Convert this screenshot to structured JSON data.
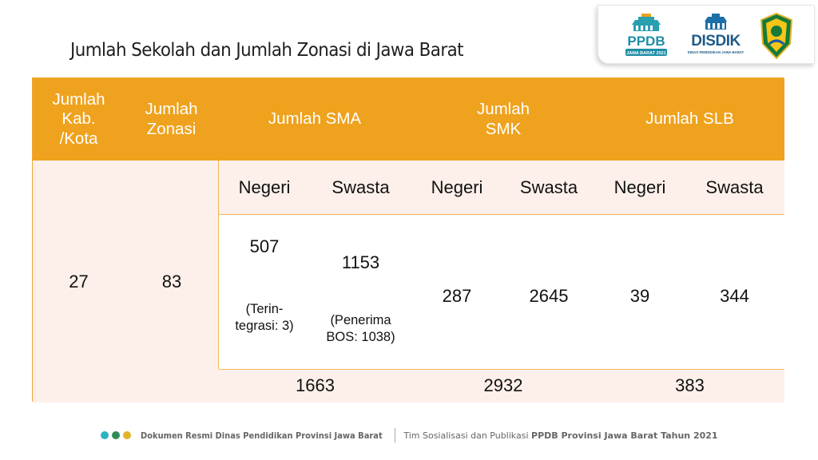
{
  "slide": {
    "title": "Jumlah Sekolah dan Jumlah Zonasi di Jawa Barat"
  },
  "logos": {
    "ppdb": {
      "name": "PPDB",
      "sub": "JAWA BARAT 2021"
    },
    "disdik": {
      "name": "DISDIK",
      "sub": "DINAS PENDIDIKAN JAWA BARAT"
    },
    "emblem": "west-java-emblem"
  },
  "table": {
    "headers": {
      "kab_kota": "Jumlah Kab. /Kota",
      "zonasi": "Jumlah Zonasi",
      "sma": "Jumlah SMA",
      "smk": "Jumlah SMK",
      "slb": "Jumlah SLB"
    },
    "subheaders": {
      "sma_negeri": "Negeri",
      "sma_swasta": "Swasta",
      "smk_negeri": "Negeri",
      "smk_swasta": "Swasta",
      "slb_negeri": "Negeri",
      "slb_swasta": "Swasta"
    },
    "values": {
      "kab_kota": "27",
      "zonasi": "83",
      "sma_negeri": "507",
      "sma_negeri_note": "(Terin- tegrasi: 3)",
      "sma_swasta": "1153",
      "sma_swasta_note": "(Penerima BOS: 1038)",
      "smk_negeri": "287",
      "smk_swasta": "2645",
      "slb_negeri": "39",
      "slb_swasta": "344"
    },
    "totals": {
      "sma": "1663",
      "smk": "2932",
      "slb": "383"
    }
  },
  "footer": {
    "dot_colors": [
      "#2bb3c0",
      "#2e8b57",
      "#e2b32b"
    ],
    "left_text": "Dokumen Resmi Dinas Pendidikan Provinsi Jawa Barat",
    "right_plain": "Tim Sosialisasi dan Publikasi",
    "right_bold": "PPDB Provinsi Jawa Barat Tahun 2021"
  }
}
